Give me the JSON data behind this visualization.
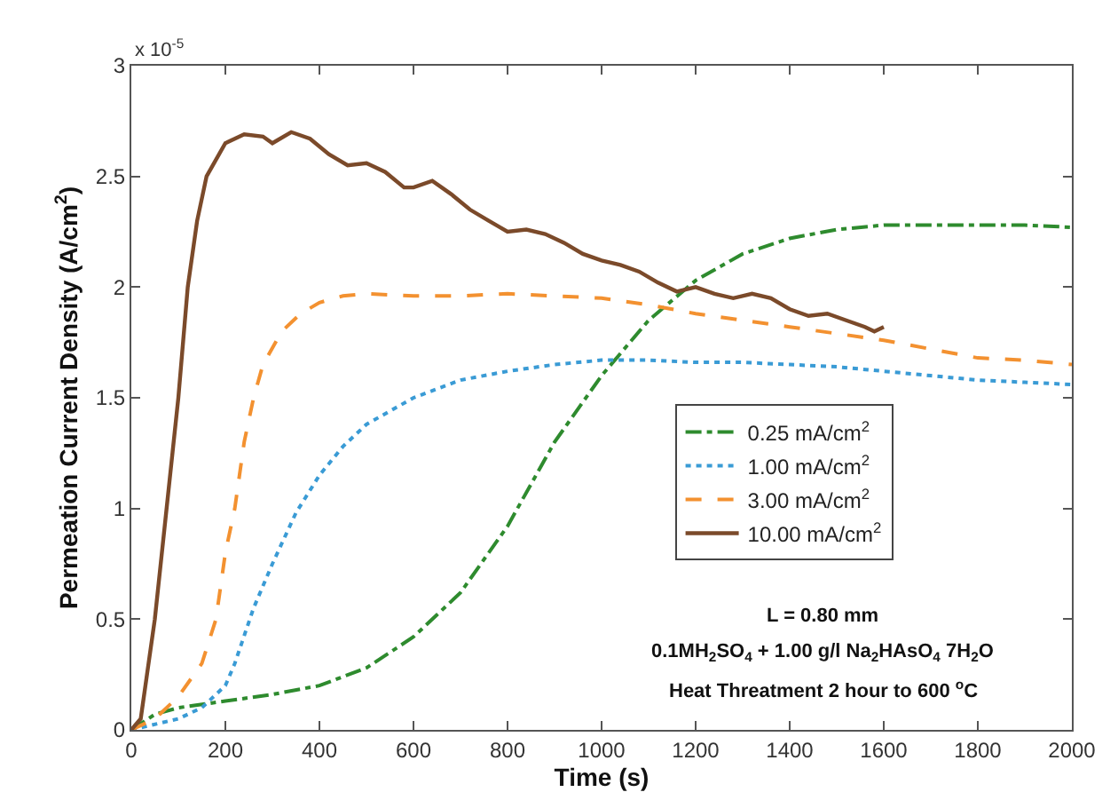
{
  "chart_data": {
    "type": "line",
    "xlabel": "Time (s)",
    "ylabel": "Permeation Current Density (A/cm$^{2}$)",
    "annotations": [
      "x 10$^{-5}$",
      "L = 0.80 mm",
      "0.1MH$_{2}$SO$_{4}$ + 1.00 g/l Na$_{2}$HAsO$_{4}$ 7H$_{2}$O",
      "Heat Threatment 2 hour to 600 $^{o}$C"
    ],
    "xlim": [
      0,
      2000
    ],
    "xticks": [
      0,
      200,
      400,
      600,
      800,
      1000,
      1200,
      1400,
      1600,
      1800,
      2000
    ],
    "ylim": [
      0,
      3
    ],
    "yticks": [
      0,
      0.5,
      1,
      1.5,
      2,
      2.5,
      3
    ],
    "legend": "right",
    "marker": "none",
    "series": [
      {
        "name": "0.25 mA/cm$^{2}$",
        "color": "#2e8b2e",
        "line_style": "dashdot",
        "x": [
          0,
          50,
          100,
          200,
          300,
          400,
          500,
          600,
          700,
          800,
          900,
          1000,
          1100,
          1200,
          1300,
          1400,
          1500,
          1600,
          1700,
          1800,
          1900,
          2000
        ],
        "values": [
          0,
          0.07,
          0.1,
          0.13,
          0.16,
          0.2,
          0.28,
          0.42,
          0.62,
          0.92,
          1.3,
          1.6,
          1.85,
          2.03,
          2.15,
          2.22,
          2.26,
          2.28,
          2.28,
          2.28,
          2.28,
          2.27
        ]
      },
      {
        "name": "1.00 mA/cm$^{2}$",
        "color": "#3a9bd5",
        "line_style": "dotted",
        "x": [
          0,
          100,
          150,
          200,
          220,
          260,
          300,
          350,
          400,
          450,
          500,
          600,
          700,
          800,
          900,
          1000,
          1100,
          1200,
          1300,
          1400,
          1500,
          1600,
          1700,
          1800,
          1900,
          2000
        ],
        "values": [
          0,
          0.05,
          0.1,
          0.2,
          0.3,
          0.55,
          0.75,
          0.98,
          1.15,
          1.28,
          1.38,
          1.5,
          1.58,
          1.62,
          1.65,
          1.67,
          1.67,
          1.66,
          1.66,
          1.65,
          1.64,
          1.62,
          1.6,
          1.58,
          1.57,
          1.56
        ]
      },
      {
        "name": "3.00 mA/cm$^{2}$",
        "color": "#f39130",
        "line_style": "dashed",
        "x": [
          0,
          50,
          100,
          150,
          180,
          200,
          220,
          240,
          260,
          280,
          320,
          360,
          400,
          450,
          500,
          600,
          700,
          800,
          900,
          1000,
          1100,
          1200,
          1300,
          1400,
          1500,
          1600,
          1700,
          1800,
          1900,
          2000
        ],
        "values": [
          0,
          0.05,
          0.15,
          0.3,
          0.5,
          0.8,
          1.0,
          1.3,
          1.5,
          1.65,
          1.8,
          1.88,
          1.93,
          1.96,
          1.97,
          1.96,
          1.96,
          1.97,
          1.96,
          1.95,
          1.92,
          1.88,
          1.85,
          1.82,
          1.79,
          1.76,
          1.72,
          1.68,
          1.67,
          1.65
        ]
      },
      {
        "name": "10.00 mA/cm$^{2}$",
        "color": "#7b4a2a",
        "line_style": "solid",
        "x": [
          0,
          20,
          50,
          80,
          100,
          120,
          140,
          160,
          200,
          240,
          280,
          300,
          340,
          380,
          420,
          460,
          500,
          540,
          580,
          600,
          640,
          680,
          720,
          760,
          800,
          840,
          880,
          920,
          960,
          1000,
          1040,
          1080,
          1120,
          1160,
          1200,
          1240,
          1280,
          1320,
          1360,
          1400,
          1440,
          1480,
          1520,
          1560,
          1580,
          1600
        ],
        "values": [
          0,
          0.05,
          0.5,
          1.1,
          1.5,
          2.0,
          2.3,
          2.5,
          2.65,
          2.69,
          2.68,
          2.65,
          2.7,
          2.67,
          2.6,
          2.55,
          2.56,
          2.52,
          2.45,
          2.45,
          2.48,
          2.42,
          2.35,
          2.3,
          2.25,
          2.26,
          2.24,
          2.2,
          2.15,
          2.12,
          2.1,
          2.07,
          2.02,
          1.98,
          2.0,
          1.97,
          1.95,
          1.97,
          1.95,
          1.9,
          1.87,
          1.88,
          1.85,
          1.82,
          1.8,
          1.82
        ]
      }
    ]
  }
}
